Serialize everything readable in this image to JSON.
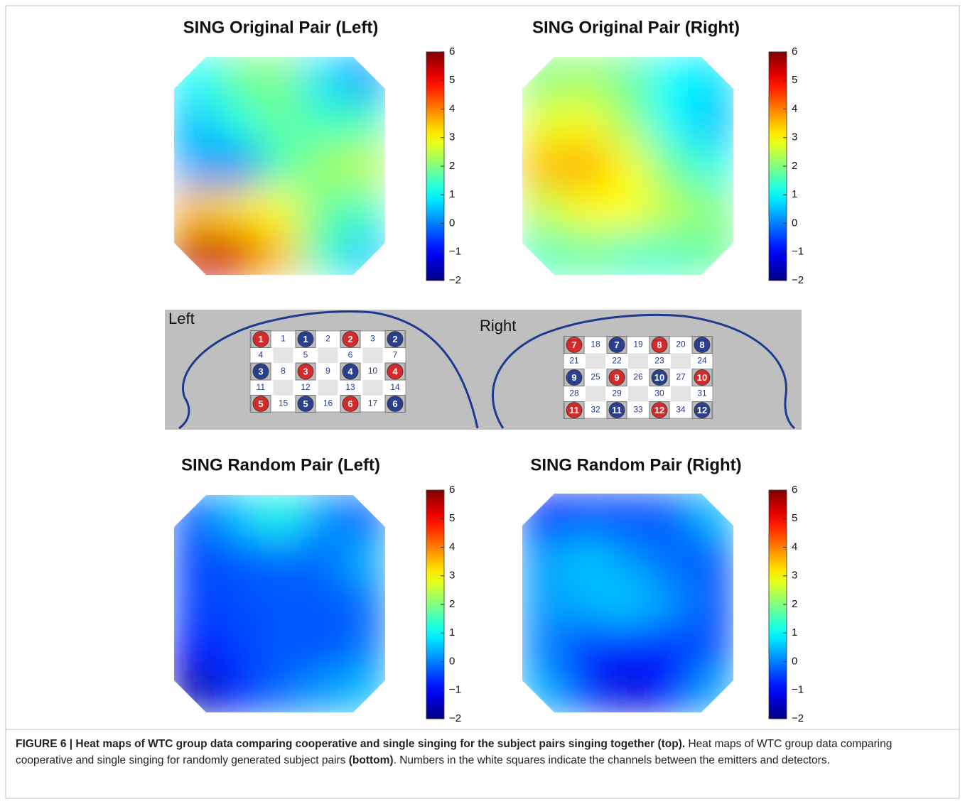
{
  "chart_data": [
    {
      "type": "heatmap",
      "title": "SING Original Pair (Left)",
      "values": [
        [
          1.0,
          1.8,
          2.0,
          0.8,
          0.2
        ],
        [
          0.5,
          1.2,
          1.8,
          1.5,
          1.5
        ],
        [
          0.3,
          0.0,
          1.5,
          2.2,
          2.5
        ],
        [
          3.5,
          3.2,
          3.0,
          1.8,
          1.5
        ],
        [
          5.5,
          5.3,
          3.5,
          1.5,
          0.6
        ]
      ],
      "zlim": [
        -2,
        6
      ],
      "zticks": [
        6,
        5,
        4,
        3,
        2,
        1,
        0,
        {
          "value": -1,
          "label": "−1"
        },
        {
          "value": -2,
          "label": "−2"
        }
      ],
      "colormap": "jet"
    },
    {
      "type": "heatmap",
      "title": "SING Original Pair (Right)",
      "values": [
        [
          2.0,
          2.2,
          1.8,
          1.0,
          0.8
        ],
        [
          2.8,
          3.0,
          2.2,
          1.0,
          0.5
        ],
        [
          3.5,
          3.7,
          3.0,
          1.8,
          1.2
        ],
        [
          2.5,
          3.0,
          3.0,
          2.5,
          2.0
        ],
        [
          1.5,
          1.8,
          1.5,
          1.5,
          1.8
        ]
      ],
      "zlim": [
        -2,
        6
      ],
      "zticks": [
        6,
        5,
        4,
        3,
        2,
        1,
        0,
        {
          "value": -1,
          "label": "−1"
        },
        {
          "value": -2,
          "label": "−2"
        }
      ],
      "colormap": "jet"
    },
    {
      "type": "heatmap",
      "title": "SING Random Pair (Left)",
      "values": [
        [
          -0.3,
          0.5,
          1.2,
          0.2,
          -0.3
        ],
        [
          -0.5,
          -0.3,
          -0.2,
          -0.2,
          0.4
        ],
        [
          -0.5,
          -0.4,
          -0.3,
          -0.3,
          -0.2
        ],
        [
          -1.0,
          -0.5,
          -0.3,
          -0.4,
          -0.1
        ],
        [
          -1.8,
          -0.8,
          -0.2,
          0.2,
          0.5
        ]
      ],
      "zlim": [
        -2,
        6
      ],
      "zticks": [
        6,
        5,
        4,
        3,
        2,
        1,
        0,
        {
          "value": -1,
          "label": "−1"
        },
        {
          "value": -2,
          "label": "−2"
        }
      ],
      "colormap": "jet"
    },
    {
      "type": "heatmap",
      "title": "SING Random Pair (Right)",
      "values": [
        [
          -0.8,
          -0.5,
          -0.5,
          -0.3,
          0.5
        ],
        [
          0.2,
          0.6,
          0.2,
          -0.2,
          -0.3
        ],
        [
          0.2,
          0.4,
          0.6,
          0.2,
          -0.4
        ],
        [
          0.0,
          -0.6,
          -0.8,
          -0.7,
          -0.4
        ],
        [
          0.4,
          -0.6,
          -1.3,
          -0.8,
          0.3
        ]
      ],
      "zlim": [
        -2,
        6
      ],
      "zticks": [
        6,
        5,
        4,
        3,
        2,
        1,
        0,
        {
          "value": -1,
          "label": "−1"
        },
        {
          "value": -2,
          "label": "−2"
        }
      ],
      "colormap": "jet"
    }
  ],
  "probe_layout": {
    "left_label": "Left",
    "right_label": "Right",
    "left_grid": [
      [
        {
          "label": "1",
          "color": "#d42a2a"
        },
        "1",
        {
          "label": "1",
          "color": "#2b3f8f"
        },
        "2",
        {
          "label": "2",
          "color": "#d42a2a"
        },
        "3",
        {
          "label": "2",
          "color": "#2b3f8f"
        }
      ],
      [
        "4",
        "5",
        "6",
        "7"
      ],
      [
        {
          "label": "3",
          "color": "#2b3f8f"
        },
        "8",
        {
          "label": "3",
          "color": "#d42a2a"
        },
        "9",
        {
          "label": "4",
          "color": "#2b3f8f"
        },
        "10",
        {
          "label": "4",
          "color": "#d42a2a"
        }
      ],
      [
        "11",
        "12",
        "13",
        "14"
      ],
      [
        {
          "label": "5",
          "color": "#d42a2a"
        },
        "15",
        {
          "label": "5",
          "color": "#2b3f8f"
        },
        "16",
        {
          "label": "6",
          "color": "#d42a2a"
        },
        "17",
        {
          "label": "6",
          "color": "#2b3f8f"
        }
      ]
    ],
    "right_grid": [
      [
        {
          "label": "7",
          "color": "#d42a2a"
        },
        "18",
        {
          "label": "7",
          "color": "#2b3f8f"
        },
        "19",
        {
          "label": "8",
          "color": "#d42a2a"
        },
        "20",
        {
          "label": "8",
          "color": "#2b3f8f"
        }
      ],
      [
        "21",
        "22",
        "23",
        "24"
      ],
      [
        {
          "label": "9",
          "color": "#2b3f8f"
        },
        "25",
        {
          "label": "9",
          "color": "#d42a2a"
        },
        "26",
        {
          "label": "10",
          "color": "#2b3f8f"
        },
        "27",
        {
          "label": "10",
          "color": "#d42a2a"
        }
      ],
      [
        "28",
        "29",
        "30",
        "31"
      ],
      [
        {
          "label": "11",
          "color": "#d42a2a"
        },
        "32",
        {
          "label": "11",
          "color": "#2b3f8f"
        },
        "33",
        {
          "label": "12",
          "color": "#d42a2a"
        },
        "34",
        {
          "label": "12",
          "color": "#2b3f8f"
        }
      ]
    ]
  },
  "caption": [
    {
      "text": "FIGURE 6 | Heat maps of WTC group data comparing cooperative and single singing for the subject pairs singing together (top).",
      "bold": true
    },
    {
      "text": " Heat maps of WTC group data comparing cooperative and single singing for randomly generated subject pairs ",
      "bold": false
    },
    {
      "text": "(bottom)",
      "bold": true
    },
    {
      "text": ". Numbers in the white squares indicate the channels between the emitters and detectors.",
      "bold": false
    }
  ]
}
